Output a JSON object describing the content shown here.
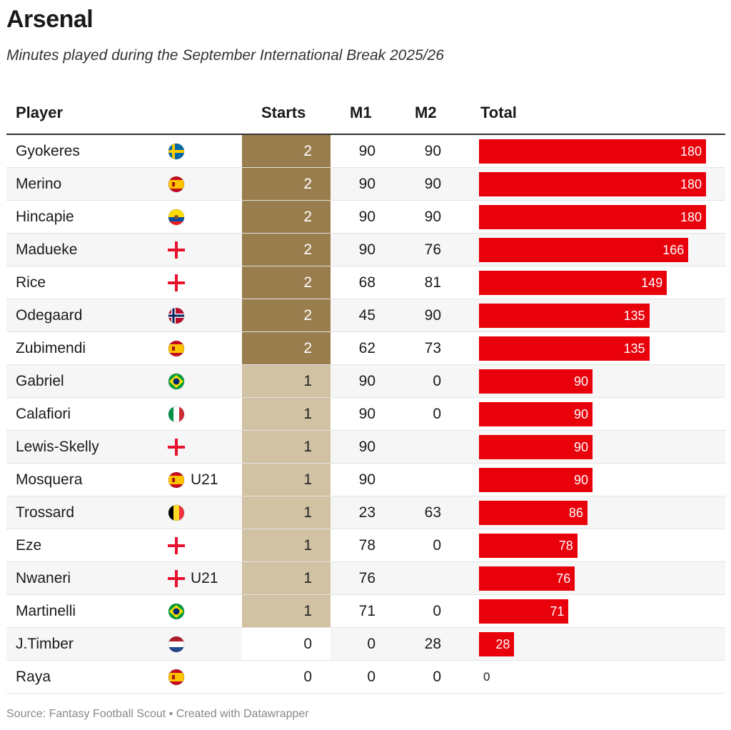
{
  "title": "Arsenal",
  "subtitle": "Minutes played during the September International Break 2025/26",
  "footer": "Source: Fantasy Football Scout • Created with Datawrapper",
  "colors": {
    "bar": "#e8000b",
    "starts2": "#9a7d4d",
    "starts1": "#d1c2a3"
  },
  "chart_data": {
    "type": "table",
    "title": "Arsenal",
    "subtitle": "Minutes played during the September International Break 2025/26",
    "columns": [
      "Player",
      "Starts",
      "M1",
      "M2",
      "Total"
    ],
    "max_total": 180,
    "rows": [
      {
        "player": "Gyokeres",
        "flag": "sweden-flag-icon",
        "note": "",
        "starts": "2",
        "m1": "90",
        "m2": "90",
        "total": 180
      },
      {
        "player": "Merino",
        "flag": "spain-flag-icon",
        "note": "",
        "starts": "2",
        "m1": "90",
        "m2": "90",
        "total": 180
      },
      {
        "player": "Hincapie",
        "flag": "ecuador-flag-icon",
        "note": "",
        "starts": "2",
        "m1": "90",
        "m2": "90",
        "total": 180
      },
      {
        "player": "Madueke",
        "flag": "england-flag-icon",
        "note": "",
        "starts": "2",
        "m1": "90",
        "m2": "76",
        "total": 166
      },
      {
        "player": "Rice",
        "flag": "england-flag-icon",
        "note": "",
        "starts": "2",
        "m1": "68",
        "m2": "81",
        "total": 149
      },
      {
        "player": "Odegaard",
        "flag": "norway-flag-icon",
        "note": "",
        "starts": "2",
        "m1": "45",
        "m2": "90",
        "total": 135
      },
      {
        "player": "Zubimendi",
        "flag": "spain-flag-icon",
        "note": "",
        "starts": "2",
        "m1": "62",
        "m2": "73",
        "total": 135
      },
      {
        "player": "Gabriel",
        "flag": "brazil-flag-icon",
        "note": "",
        "starts": "1",
        "m1": "90",
        "m2": "0",
        "total": 90
      },
      {
        "player": "Calafiori",
        "flag": "italy-flag-icon",
        "note": "",
        "starts": "1",
        "m1": "90",
        "m2": "0",
        "total": 90
      },
      {
        "player": "Lewis-Skelly",
        "flag": "england-flag-icon",
        "note": "",
        "starts": "1",
        "m1": "90",
        "m2": "",
        "total": 90
      },
      {
        "player": "Mosquera",
        "flag": "spain-flag-icon",
        "note": "U21",
        "starts": "1",
        "m1": "90",
        "m2": "",
        "total": 90
      },
      {
        "player": "Trossard",
        "flag": "belgium-flag-icon",
        "note": "",
        "starts": "1",
        "m1": "23",
        "m2": "63",
        "total": 86
      },
      {
        "player": "Eze",
        "flag": "england-flag-icon",
        "note": "",
        "starts": "1",
        "m1": "78",
        "m2": "0",
        "total": 78
      },
      {
        "player": "Nwaneri",
        "flag": "england-flag-icon",
        "note": "U21",
        "starts": "1",
        "m1": "76",
        "m2": "",
        "total": 76
      },
      {
        "player": "Martinelli",
        "flag": "brazil-flag-icon",
        "note": "",
        "starts": "1",
        "m1": "71",
        "m2": "0",
        "total": 71
      },
      {
        "player": "J.Timber",
        "flag": "netherlands-flag-icon",
        "note": "",
        "starts": "0",
        "m1": "0",
        "m2": "28",
        "total": 28
      },
      {
        "player": "Raya",
        "flag": "spain-flag-icon",
        "note": "",
        "starts": "0",
        "m1": "0",
        "m2": "0",
        "total": 0
      }
    ]
  }
}
